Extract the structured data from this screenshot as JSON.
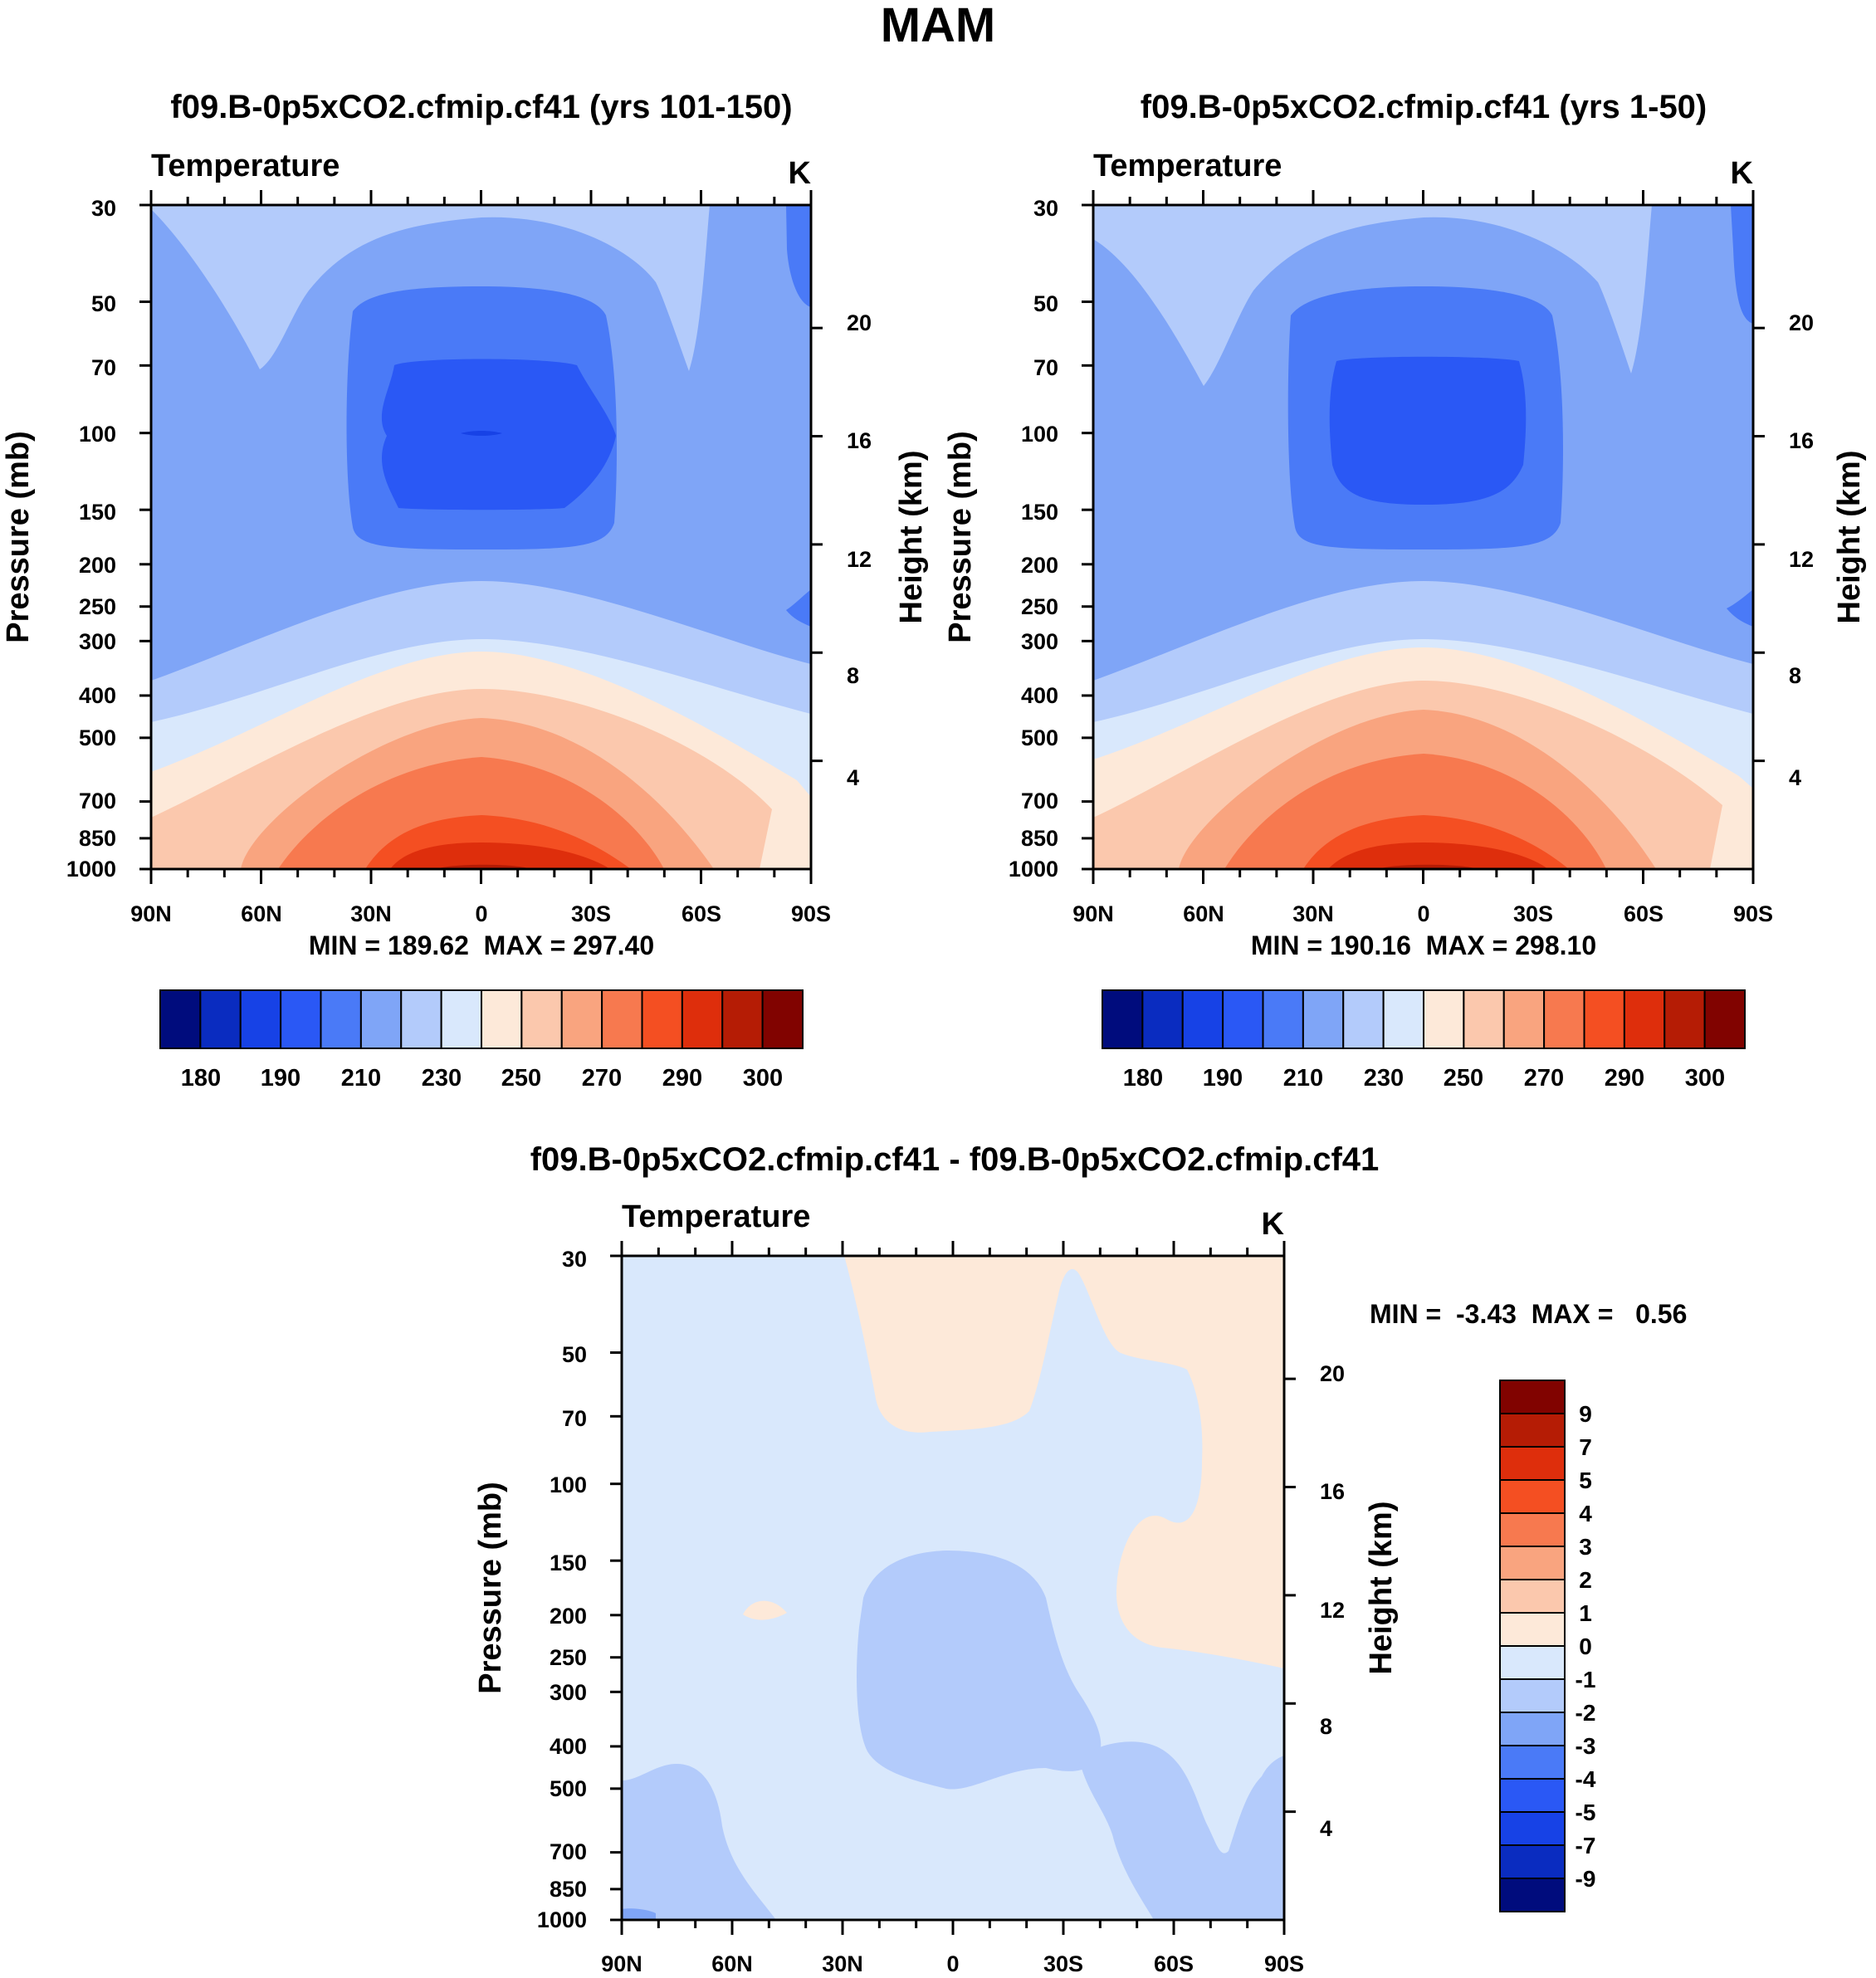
{
  "figure_title": "MAM",
  "chart_data": [
    {
      "type": "contour",
      "title": "f09.B-0p5xCO2.cfmip.cf41 (yrs 101-150)",
      "left_label": "Temperature",
      "right_label": "K",
      "xlabel": "",
      "ylabel": "Pressure (mb)",
      "ylabel_right": "Height (km)",
      "x_ticks": [
        "90N",
        "60N",
        "30N",
        "0",
        "30S",
        "60S",
        "90S"
      ],
      "x_range": [
        90,
        -90
      ],
      "pressure_ticks": [
        30,
        50,
        70,
        100,
        150,
        200,
        250,
        300,
        400,
        500,
        700,
        850,
        1000
      ],
      "pressure_range": [
        30,
        1000
      ],
      "height_ticks": [
        20,
        16,
        12,
        8,
        4
      ],
      "stats": "MIN = 189.62  MAX = 297.40",
      "min": 189.62,
      "max": 297.4,
      "colorbar_ticks": [
        "180",
        "190",
        "210",
        "230",
        "250",
        "270",
        "290",
        "300"
      ],
      "colorbar_colors": [
        "#000c7d",
        "#0a2cc0",
        "#1742e6",
        "#2a58f5",
        "#4a7af7",
        "#7fa5f7",
        "#b3cbfb",
        "#d9e8fc",
        "#fde9d9",
        "#fbc8ad",
        "#f9a47f",
        "#f7794f",
        "#f44f22",
        "#de2e0c",
        "#b51c05",
        "#810300"
      ],
      "approx_levels_K": {
        "stratosphere_midlat": 215,
        "tropopause_core": 192,
        "surface_equator": 295
      }
    },
    {
      "type": "contour",
      "title": "f09.B-0p5xCO2.cfmip.cf41 (yrs 1-50)",
      "left_label": "Temperature",
      "right_label": "K",
      "xlabel": "",
      "ylabel": "Pressure (mb)",
      "ylabel_right": "Height (km)",
      "x_ticks": [
        "90N",
        "60N",
        "30N",
        "0",
        "30S",
        "60S",
        "90S"
      ],
      "x_range": [
        90,
        -90
      ],
      "pressure_ticks": [
        30,
        50,
        70,
        100,
        150,
        200,
        250,
        300,
        400,
        500,
        700,
        850,
        1000
      ],
      "pressure_range": [
        30,
        1000
      ],
      "height_ticks": [
        20,
        16,
        12,
        8,
        4
      ],
      "stats": "MIN = 190.16  MAX = 298.10",
      "min": 190.16,
      "max": 298.1,
      "colorbar_ticks": [
        "180",
        "190",
        "210",
        "230",
        "250",
        "270",
        "290",
        "300"
      ],
      "colorbar_colors": [
        "#000c7d",
        "#0a2cc0",
        "#1742e6",
        "#2a58f5",
        "#4a7af7",
        "#7fa5f7",
        "#b3cbfb",
        "#d9e8fc",
        "#fde9d9",
        "#fbc8ad",
        "#f9a47f",
        "#f7794f",
        "#f44f22",
        "#de2e0c",
        "#b51c05",
        "#810300"
      ],
      "approx_levels_K": {
        "stratosphere_midlat": 215,
        "tropopause_core": 193,
        "surface_equator": 296
      }
    },
    {
      "type": "contour",
      "title": "f09.B-0p5xCO2.cfmip.cf41 - f09.B-0p5xCO2.cfmip.cf41",
      "left_label": "Temperature",
      "right_label": "K",
      "xlabel": "",
      "ylabel": "Pressure (mb)",
      "ylabel_right": "Height (km)",
      "x_ticks": [
        "90N",
        "60N",
        "30N",
        "0",
        "30S",
        "60S",
        "90S"
      ],
      "x_range": [
        90,
        -90
      ],
      "pressure_ticks": [
        30,
        50,
        70,
        100,
        150,
        200,
        250,
        300,
        400,
        500,
        700,
        850,
        1000
      ],
      "pressure_range": [
        30,
        1000
      ],
      "height_ticks": [
        20,
        16,
        12,
        8,
        4
      ],
      "stats": "MIN =  -3.43  MAX =   0.56",
      "min": -3.43,
      "max": 0.56,
      "colorbar_ticks": [
        "9",
        "7",
        "5",
        "4",
        "3",
        "2",
        "1",
        "0",
        "-1",
        "-2",
        "-3",
        "-4",
        "-5",
        "-7",
        "-9"
      ],
      "colorbar_colors": [
        "#810300",
        "#b51c05",
        "#de2e0c",
        "#f44f22",
        "#f7794f",
        "#f9a47f",
        "#fbc8ad",
        "#fde9d9",
        "#d9e8fc",
        "#b3cbfb",
        "#7fa5f7",
        "#4a7af7",
        "#2a58f5",
        "#1742e6",
        "#0a2cc0",
        "#000c7d"
      ],
      "dominant_levels": {
        "background": "-1 to 0",
        "positive_regions": "0 to 1",
        "negative_core": "-2 to -1"
      }
    }
  ]
}
